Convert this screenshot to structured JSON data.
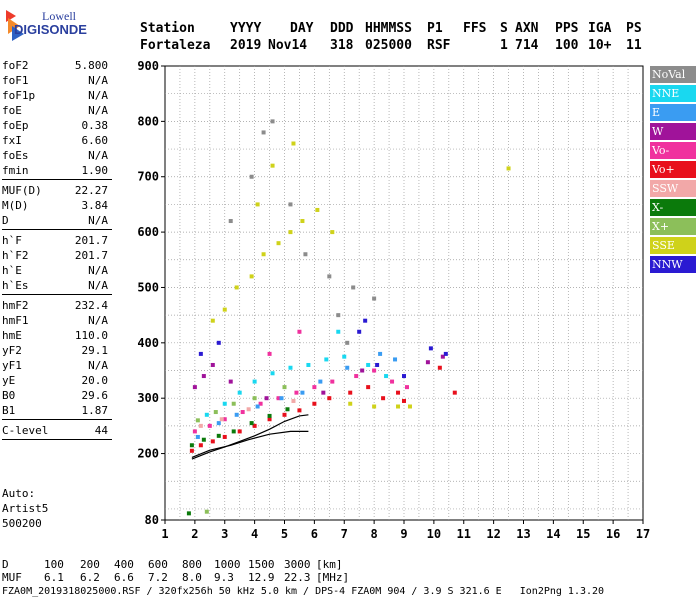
{
  "logo": {
    "line1": "Lowell",
    "line2": "DIGISONDE"
  },
  "header": {
    "labels": [
      "Station",
      "YYYY",
      "DAY",
      "DDD",
      "HHMMSS",
      "P1",
      "FFS",
      "S",
      "AXN",
      "PPS",
      "IGA",
      "PS"
    ],
    "values": [
      "Fortaleza",
      "2019",
      "Nov14",
      "318",
      "025000",
      "RSF",
      "",
      "1",
      "714",
      "100",
      "10+",
      "11"
    ]
  },
  "params": [
    [
      {
        "k": "foF2",
        "v": "5.800"
      },
      {
        "k": "foF1",
        "v": "N/A"
      },
      {
        "k": "foF1p",
        "v": "N/A"
      },
      {
        "k": "foE",
        "v": "N/A"
      },
      {
        "k": "foEp",
        "v": "0.38"
      },
      {
        "k": "fxI",
        "v": "6.60"
      },
      {
        "k": "foEs",
        "v": "N/A"
      },
      {
        "k": "fmin",
        "v": "1.90"
      }
    ],
    [
      {
        "k": "MUF(D)",
        "v": "22.27"
      },
      {
        "k": "M(D)",
        "v": "3.84"
      },
      {
        "k": "D",
        "v": "N/A"
      }
    ],
    [
      {
        "k": "h`F",
        "v": "201.7"
      },
      {
        "k": "h`F2",
        "v": "201.7"
      },
      {
        "k": "h`E",
        "v": "N/A"
      },
      {
        "k": "h`Es",
        "v": "N/A"
      }
    ],
    [
      {
        "k": "hmF2",
        "v": "232.4"
      },
      {
        "k": "hmF1",
        "v": "N/A"
      },
      {
        "k": "hmE",
        "v": "110.0"
      },
      {
        "k": "yF2",
        "v": "29.1"
      },
      {
        "k": "yF1",
        "v": "N/A"
      },
      {
        "k": "yE",
        "v": "20.0"
      },
      {
        "k": "B0",
        "v": "29.6"
      },
      {
        "k": "B1",
        "v": "1.87"
      }
    ],
    [
      {
        "k": "C-level",
        "v": "44"
      }
    ]
  ],
  "auto": [
    "Auto:",
    "Artist5",
    "500200"
  ],
  "legend": [
    {
      "label": "NoVal",
      "color": "#8c8c8c"
    },
    {
      "label": "NNE",
      "color": "#19d8f0"
    },
    {
      "label": "E",
      "color": "#3a9cf2"
    },
    {
      "label": "W",
      "color": "#a0139a"
    },
    {
      "label": "Vo-",
      "color": "#f0319e"
    },
    {
      "label": "Vo+",
      "color": "#e8101c"
    },
    {
      "label": "SSW",
      "color": "#f2a8a8"
    },
    {
      "label": "X-",
      "color": "#0b7a0b"
    },
    {
      "label": "X+",
      "color": "#8cbf5a"
    },
    {
      "label": "SSE",
      "color": "#cfd21a"
    },
    {
      "label": "NNW",
      "color": "#2a1ad2"
    }
  ],
  "chart_data": {
    "type": "scatter",
    "title": "",
    "xlabel": "",
    "ylabel": "",
    "xlim": [
      1,
      17
    ],
    "ylim": [
      80,
      900
    ],
    "xticks": [
      1,
      2,
      3,
      4,
      5,
      6,
      7,
      8,
      9,
      10,
      11,
      12,
      13,
      14,
      15,
      16,
      17
    ],
    "yticks": [
      80,
      200,
      300,
      400,
      500,
      600,
      700,
      800,
      900
    ],
    "grid": true,
    "series": [
      {
        "color": "#e8101c",
        "points": [
          [
            1.9,
            205
          ],
          [
            2.2,
            215
          ],
          [
            2.6,
            222
          ],
          [
            3.0,
            230
          ],
          [
            3.5,
            240
          ],
          [
            4.0,
            250
          ],
          [
            4.5,
            262
          ],
          [
            5.0,
            270
          ],
          [
            5.5,
            278
          ],
          [
            6.0,
            290
          ],
          [
            6.5,
            300
          ],
          [
            7.2,
            310
          ],
          [
            7.8,
            320
          ],
          [
            8.3,
            300
          ],
          [
            8.8,
            310
          ],
          [
            9.0,
            295
          ],
          [
            10.2,
            355
          ],
          [
            10.7,
            310
          ]
        ]
      },
      {
        "color": "#f0319e",
        "points": [
          [
            2.0,
            240
          ],
          [
            2.5,
            250
          ],
          [
            3.0,
            262
          ],
          [
            3.6,
            275
          ],
          [
            4.2,
            290
          ],
          [
            4.8,
            300
          ],
          [
            5.4,
            310
          ],
          [
            6.0,
            320
          ],
          [
            6.6,
            330
          ],
          [
            7.4,
            340
          ],
          [
            8.0,
            350
          ],
          [
            8.6,
            330
          ],
          [
            9.1,
            320
          ],
          [
            4.5,
            380
          ],
          [
            5.5,
            420
          ]
        ]
      },
      {
        "color": "#19d8f0",
        "points": [
          [
            2.4,
            270
          ],
          [
            3.0,
            290
          ],
          [
            3.5,
            310
          ],
          [
            4.0,
            330
          ],
          [
            4.6,
            345
          ],
          [
            5.2,
            355
          ],
          [
            5.8,
            360
          ],
          [
            6.4,
            370
          ],
          [
            7.0,
            375
          ],
          [
            7.8,
            360
          ],
          [
            8.4,
            340
          ],
          [
            6.8,
            420
          ]
        ]
      },
      {
        "color": "#3a9cf2",
        "points": [
          [
            2.1,
            230
          ],
          [
            2.8,
            255
          ],
          [
            3.4,
            270
          ],
          [
            4.1,
            285
          ],
          [
            4.9,
            300
          ],
          [
            5.6,
            310
          ],
          [
            6.2,
            330
          ],
          [
            7.1,
            355
          ],
          [
            8.2,
            380
          ],
          [
            8.7,
            370
          ]
        ]
      },
      {
        "color": "#a0139a",
        "points": [
          [
            2.0,
            320
          ],
          [
            2.3,
            340
          ],
          [
            2.6,
            360
          ],
          [
            3.2,
            330
          ],
          [
            4.4,
            300
          ],
          [
            6.3,
            310
          ],
          [
            7.6,
            350
          ],
          [
            9.8,
            365
          ],
          [
            10.3,
            375
          ]
        ]
      },
      {
        "color": "#2a1ad2",
        "points": [
          [
            2.2,
            380
          ],
          [
            2.8,
            400
          ],
          [
            7.5,
            420
          ],
          [
            7.7,
            440
          ],
          [
            8.1,
            360
          ],
          [
            9.0,
            340
          ],
          [
            9.9,
            390
          ],
          [
            10.4,
            380
          ]
        ]
      },
      {
        "color": "#cfd21a",
        "points": [
          [
            2.6,
            440
          ],
          [
            3.0,
            460
          ],
          [
            3.4,
            500
          ],
          [
            3.9,
            520
          ],
          [
            4.3,
            560
          ],
          [
            4.8,
            580
          ],
          [
            5.2,
            600
          ],
          [
            5.6,
            620
          ],
          [
            6.1,
            640
          ],
          [
            6.6,
            600
          ],
          [
            4.1,
            650
          ],
          [
            4.6,
            720
          ],
          [
            5.3,
            760
          ],
          [
            7.2,
            290
          ],
          [
            8.0,
            285
          ],
          [
            8.8,
            285
          ],
          [
            9.2,
            285
          ],
          [
            12.5,
            715
          ]
        ]
      },
      {
        "color": "#0b7a0b",
        "points": [
          [
            1.9,
            215
          ],
          [
            2.3,
            225
          ],
          [
            2.8,
            232
          ],
          [
            3.3,
            240
          ],
          [
            3.9,
            255
          ],
          [
            4.5,
            268
          ],
          [
            5.1,
            280
          ],
          [
            1.8,
            92
          ]
        ]
      },
      {
        "color": "#8cbf5a",
        "points": [
          [
            2.1,
            260
          ],
          [
            2.7,
            275
          ],
          [
            3.3,
            290
          ],
          [
            4.0,
            300
          ],
          [
            5.0,
            320
          ],
          [
            2.4,
            95
          ]
        ]
      },
      {
        "color": "#8c8c8c",
        "points": [
          [
            3.2,
            620
          ],
          [
            3.9,
            700
          ],
          [
            4.3,
            780
          ],
          [
            4.6,
            800
          ],
          [
            5.2,
            650
          ],
          [
            5.7,
            560
          ],
          [
            6.5,
            520
          ],
          [
            7.3,
            500
          ],
          [
            8.0,
            480
          ],
          [
            7.1,
            400
          ],
          [
            6.8,
            450
          ]
        ]
      },
      {
        "color": "#f2a8a8",
        "points": [
          [
            2.2,
            250
          ],
          [
            2.9,
            262
          ],
          [
            3.8,
            280
          ],
          [
            5.3,
            295
          ]
        ]
      }
    ],
    "trace": [
      [
        1.9,
        190
      ],
      [
        2.5,
        203
      ],
      [
        3.0,
        212
      ],
      [
        3.5,
        222
      ],
      [
        4.0,
        232
      ],
      [
        4.5,
        244
      ],
      [
        5.0,
        258
      ],
      [
        5.5,
        268
      ],
      [
        5.8,
        270
      ]
    ],
    "trace2": [
      [
        1.9,
        193
      ],
      [
        2.5,
        206
      ],
      [
        3.2,
        215
      ],
      [
        3.8,
        225
      ],
      [
        4.5,
        235
      ],
      [
        5.2,
        240
      ],
      [
        5.8,
        240
      ]
    ]
  },
  "bottom": {
    "d_label": "D",
    "d_values": [
      "100",
      "200",
      "400",
      "600",
      "800",
      "1000",
      "1500",
      "3000",
      "[km]"
    ],
    "muf_label": "MUF",
    "muf_values": [
      "6.1",
      "6.2",
      "6.6",
      "7.2",
      "8.0",
      "9.3",
      "12.9",
      "22.3",
      "[MHz]"
    ]
  },
  "footer": "FZA0M_2019318025000.RSF / 320fx256h 50 kHz 5.0 km / DPS-4 FZA0M 904 / 3.9 S 321.6 E   Ion2Png 1.3.20"
}
